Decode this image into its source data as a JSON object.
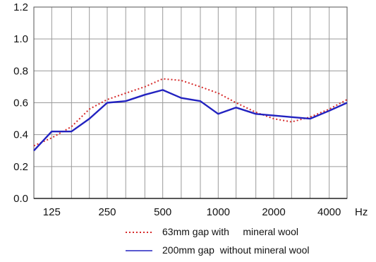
{
  "chart_data": {
    "type": "line",
    "x_unit": "Hz",
    "x_ticks": [
      "125",
      "250",
      "500",
      "1000",
      "2000",
      "4000"
    ],
    "y_ticks": [
      "0.0",
      "0.2",
      "0.4",
      "0.6",
      "0.8",
      "1.0",
      "1.2"
    ],
    "ylim": [
      0,
      1.2
    ],
    "x_scale": "log",
    "xlim": [
      100,
      5000
    ],
    "grid": true,
    "legend_position": "bottom",
    "series": [
      {
        "name": "63mm gap with     mineral wool",
        "color": "#d62b2b",
        "style": "dotted",
        "x": [
          100,
          125,
          160,
          200,
          250,
          315,
          400,
          500,
          630,
          800,
          1000,
          1250,
          1600,
          2000,
          2500,
          3150,
          4000,
          5000
        ],
        "y": [
          0.33,
          0.38,
          0.45,
          0.56,
          0.62,
          0.66,
          0.7,
          0.75,
          0.74,
          0.7,
          0.66,
          0.6,
          0.54,
          0.5,
          0.48,
          0.51,
          0.56,
          0.62
        ]
      },
      {
        "name": "200mm gap  without mineral wool",
        "color": "#2222c0",
        "style": "solid",
        "x": [
          100,
          125,
          160,
          200,
          250,
          315,
          400,
          500,
          630,
          800,
          1000,
          1250,
          1600,
          2000,
          2500,
          3150,
          4000,
          5000
        ],
        "y": [
          0.3,
          0.42,
          0.42,
          0.5,
          0.6,
          0.61,
          0.65,
          0.68,
          0.63,
          0.61,
          0.53,
          0.57,
          0.53,
          0.52,
          0.51,
          0.5,
          0.55,
          0.6
        ]
      }
    ]
  }
}
